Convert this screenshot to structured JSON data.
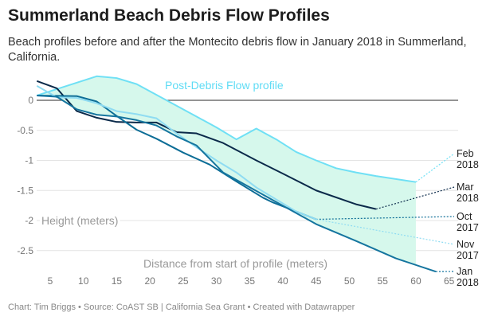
{
  "title": "Summerland Beach Debris Flow Profiles",
  "subtitle": "Beach profiles before and after the Montecito debris flow in January 2018 in Summerland, California.",
  "footer": "Chart: Tim Briggs • Source: CoAST SB | California Sea Grant • Created with Datawrapper",
  "chart_data": {
    "type": "line",
    "xlabel": "Distance from start of profile (meters)",
    "ylabel": "Height (meters)",
    "annotation": "Post-Debris Flow profile",
    "xlim": [
      3,
      65
    ],
    "ylim": [
      -2.85,
      0.4
    ],
    "xticks": [
      5,
      10,
      15,
      20,
      25,
      30,
      35,
      40,
      45,
      50,
      55,
      60,
      65
    ],
    "yticks": [
      0,
      -0.5,
      -1,
      -1.5,
      -2,
      -2.5
    ],
    "grid": true,
    "fill_between": [
      "Feb 2018",
      "Jan 2018"
    ],
    "fill_color": "#d6f8ec",
    "series": [
      {
        "name": "Feb 2018",
        "label": [
          "Feb",
          "2018"
        ],
        "color": "#6fe0f5",
        "x": [
          3,
          12,
          15,
          18,
          22.5,
          27,
          30,
          33,
          36,
          39,
          42,
          45,
          48,
          51,
          54,
          60
        ],
        "y": [
          0.08,
          0.4,
          0.37,
          0.27,
          0,
          -0.27,
          -0.45,
          -0.65,
          -0.47,
          -0.65,
          -0.86,
          -1.0,
          -1.13,
          -1.2,
          -1.26,
          -1.36
        ]
      },
      {
        "name": "Mar 2018",
        "label": [
          "Mar",
          "2018"
        ],
        "color": "#0b2a4a",
        "x": [
          3,
          6,
          9,
          12,
          15,
          18,
          21,
          24,
          27,
          31,
          36,
          40,
          45,
          51,
          54
        ],
        "y": [
          0.32,
          0.2,
          -0.18,
          -0.29,
          -0.36,
          -0.37,
          -0.37,
          -0.53,
          -0.55,
          -0.71,
          -1.0,
          -1.22,
          -1.5,
          -1.73,
          -1.81
        ]
      },
      {
        "name": "Oct 2017",
        "label": [
          "Oct",
          "2017"
        ],
        "color": "#0c6d96",
        "x": [
          3,
          9,
          12,
          15,
          18,
          21,
          25,
          29,
          33,
          37,
          38.5,
          45
        ],
        "y": [
          0.08,
          0.07,
          -0.02,
          -0.26,
          -0.49,
          -0.64,
          -0.87,
          -1.07,
          -1.35,
          -1.62,
          -1.7,
          -1.98
        ]
      },
      {
        "name": "Nov 2017",
        "label": [
          "Nov",
          "2017"
        ],
        "color": "#8fdcf2",
        "x": [
          3,
          6,
          9,
          12,
          15,
          18,
          21,
          24,
          27,
          30,
          33,
          36,
          39,
          42,
          45
        ],
        "y": [
          0.24,
          0.05,
          0.04,
          -0.05,
          -0.18,
          -0.23,
          -0.3,
          -0.55,
          -0.78,
          -1.0,
          -1.2,
          -1.45,
          -1.65,
          -1.85,
          -1.98
        ]
      },
      {
        "name": "Jan 2018",
        "label": [
          "Jan",
          "2018"
        ],
        "color": "#15759f",
        "x": [
          3,
          6,
          9,
          12,
          15,
          18,
          21,
          24,
          27,
          31,
          37,
          45,
          51,
          57,
          63
        ],
        "y": [
          0.08,
          0.06,
          -0.15,
          -0.24,
          -0.27,
          -0.33,
          -0.42,
          -0.6,
          -0.75,
          -1.2,
          -1.57,
          -2.06,
          -2.34,
          -2.63,
          -2.85
        ]
      }
    ]
  }
}
